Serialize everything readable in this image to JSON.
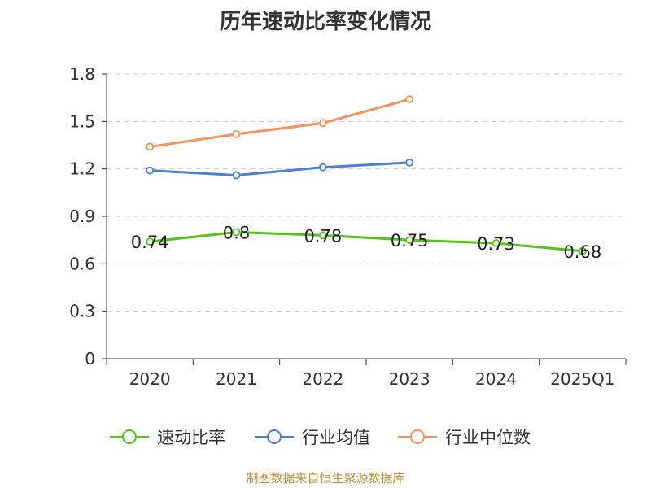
{
  "chart_data": {
    "type": "line",
    "title": "历年速动比率变化情况",
    "categories": [
      "2020",
      "2021",
      "2022",
      "2023",
      "2024",
      "2025Q1"
    ],
    "y_ticks": [
      "0",
      "0.3",
      "0.6",
      "0.9",
      "1.2",
      "1.5",
      "1.8"
    ],
    "ylim": [
      0,
      1.8
    ],
    "grid": true,
    "legend_position": "bottom",
    "series": [
      {
        "name": "速动比率",
        "color": "#52c41a",
        "values": [
          0.74,
          0.8,
          0.78,
          0.75,
          0.73,
          0.68
        ],
        "labels": [
          "0.74",
          "0.8",
          "0.78",
          "0.75",
          "0.73",
          "0.68"
        ]
      },
      {
        "name": "行业均值",
        "color": "#4a7fd8",
        "values": [
          1.19,
          1.16,
          1.21,
          1.24,
          null,
          null
        ]
      },
      {
        "name": "行业中位数",
        "color": "#f5915a",
        "values": [
          1.34,
          1.42,
          1.49,
          1.64,
          null,
          null
        ]
      }
    ]
  },
  "footer": {
    "source": "制图数据来自恒生聚源数据库"
  }
}
